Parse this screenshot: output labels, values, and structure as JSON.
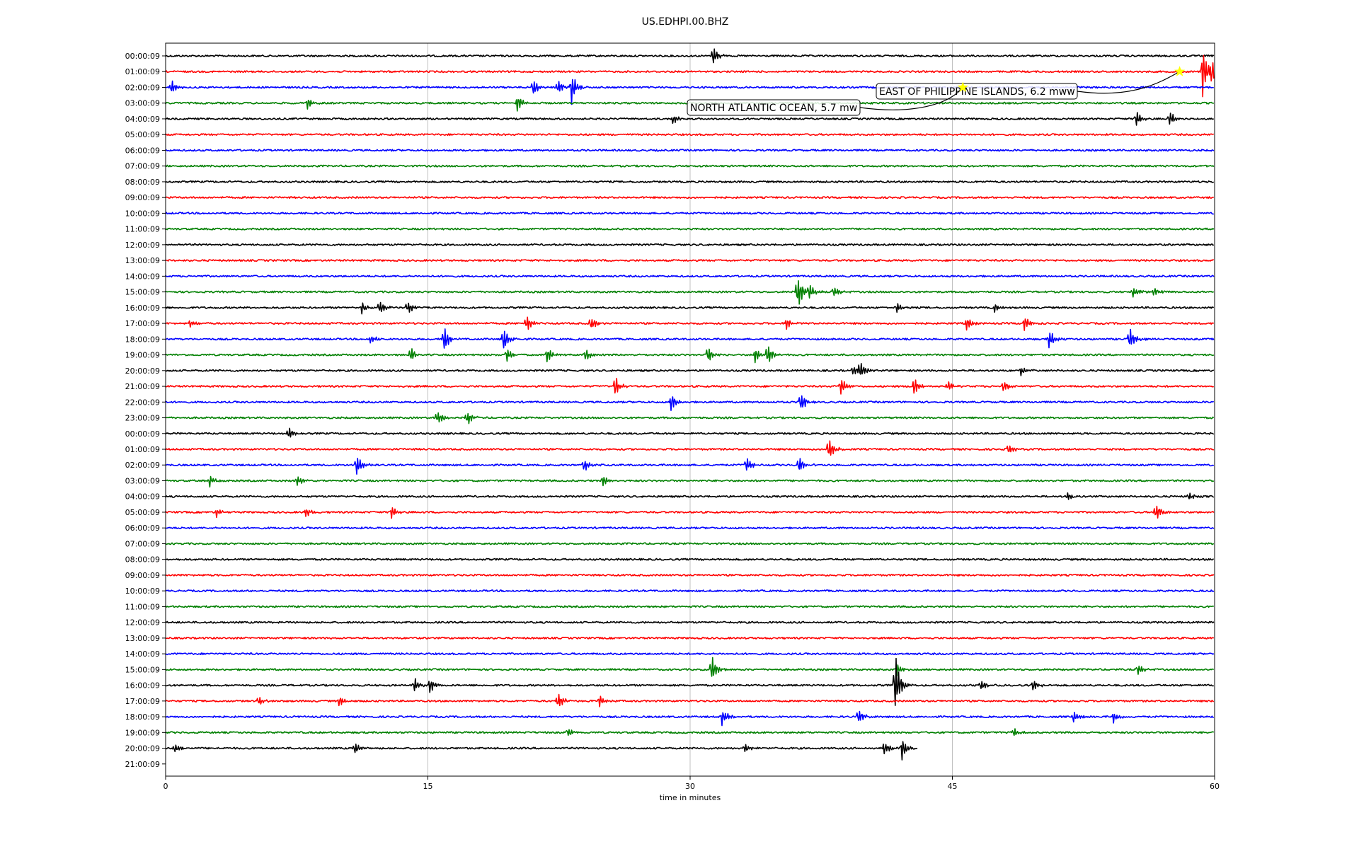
{
  "chart_data": {
    "type": "line",
    "title": "US.EDHPI.00.BHZ",
    "xlabel": "time in minutes",
    "xlim": [
      0,
      60
    ],
    "x_ticks": [
      0,
      15,
      30,
      45,
      60
    ],
    "grid": "vertical lines at x ticks",
    "trace_colors": [
      "#000000",
      "#ff0000",
      "#0000ff",
      "#008000"
    ],
    "row_labels": [
      "00:00:09",
      "01:00:09",
      "02:00:09",
      "03:00:09",
      "04:00:09",
      "05:00:09",
      "06:00:09",
      "07:00:09",
      "08:00:09",
      "09:00:09",
      "10:00:09",
      "11:00:09",
      "12:00:09",
      "13:00:09",
      "14:00:09",
      "15:00:09",
      "16:00:09",
      "17:00:09",
      "18:00:09",
      "19:00:09",
      "20:00:09",
      "21:00:09",
      "22:00:09",
      "23:00:09",
      "00:00:09",
      "01:00:09",
      "02:00:09",
      "03:00:09",
      "04:00:09",
      "05:00:09",
      "06:00:09",
      "07:00:09",
      "08:00:09",
      "09:00:09",
      "10:00:09",
      "11:00:09",
      "12:00:09",
      "13:00:09",
      "14:00:09",
      "15:00:09",
      "16:00:09",
      "17:00:09",
      "18:00:09",
      "19:00:09",
      "20:00:09",
      "21:00:09"
    ],
    "last_trace_end_minutes": 43,
    "events": [
      {
        "row": 0,
        "t": 31.3,
        "amp": 0.6
      },
      {
        "row": 1,
        "t": 59.3,
        "amp": 1.8
      },
      {
        "row": 1,
        "t": 59.8,
        "amp": 0.8
      },
      {
        "row": 2,
        "t": 0.3,
        "amp": 0.5
      },
      {
        "row": 2,
        "t": 21.0,
        "amp": 0.6
      },
      {
        "row": 2,
        "t": 22.4,
        "amp": 0.5
      },
      {
        "row": 2,
        "t": 23.2,
        "amp": 1.0
      },
      {
        "row": 3,
        "t": 8.1,
        "amp": 0.4
      },
      {
        "row": 3,
        "t": 20.1,
        "amp": 0.6
      },
      {
        "row": 4,
        "t": 29.0,
        "amp": 0.3
      },
      {
        "row": 4,
        "t": 55.5,
        "amp": 0.5
      },
      {
        "row": 4,
        "t": 57.4,
        "amp": 0.5
      },
      {
        "row": 15,
        "t": 36.1,
        "amp": 1.4
      },
      {
        "row": 15,
        "t": 36.8,
        "amp": 0.6
      },
      {
        "row": 15,
        "t": 38.2,
        "amp": 0.4
      },
      {
        "row": 15,
        "t": 55.3,
        "amp": 0.4
      },
      {
        "row": 15,
        "t": 56.5,
        "amp": 0.3
      },
      {
        "row": 16,
        "t": 11.2,
        "amp": 0.4
      },
      {
        "row": 16,
        "t": 12.2,
        "amp": 0.5
      },
      {
        "row": 16,
        "t": 13.8,
        "amp": 0.6
      },
      {
        "row": 16,
        "t": 41.8,
        "amp": 0.4
      },
      {
        "row": 16,
        "t": 47.4,
        "amp": 0.3
      },
      {
        "row": 17,
        "t": 1.4,
        "amp": 0.3
      },
      {
        "row": 17,
        "t": 20.6,
        "amp": 0.6
      },
      {
        "row": 17,
        "t": 24.3,
        "amp": 0.5
      },
      {
        "row": 17,
        "t": 35.5,
        "amp": 0.4
      },
      {
        "row": 17,
        "t": 45.8,
        "amp": 0.5
      },
      {
        "row": 17,
        "t": 49.1,
        "amp": 0.5
      },
      {
        "row": 18,
        "t": 11.7,
        "amp": 0.3
      },
      {
        "row": 18,
        "t": 15.9,
        "amp": 0.9
      },
      {
        "row": 18,
        "t": 19.3,
        "amp": 0.9
      },
      {
        "row": 18,
        "t": 50.5,
        "amp": 0.7
      },
      {
        "row": 18,
        "t": 55.1,
        "amp": 0.9
      },
      {
        "row": 19,
        "t": 14.0,
        "amp": 0.5
      },
      {
        "row": 19,
        "t": 19.5,
        "amp": 0.5
      },
      {
        "row": 19,
        "t": 21.8,
        "amp": 0.5
      },
      {
        "row": 19,
        "t": 24.0,
        "amp": 0.4
      },
      {
        "row": 19,
        "t": 31.0,
        "amp": 0.6
      },
      {
        "row": 19,
        "t": 33.7,
        "amp": 0.5
      },
      {
        "row": 19,
        "t": 34.4,
        "amp": 0.8
      },
      {
        "row": 20,
        "t": 39.3,
        "amp": 0.4
      },
      {
        "row": 20,
        "t": 39.7,
        "amp": 0.5
      },
      {
        "row": 20,
        "t": 48.9,
        "amp": 0.3
      },
      {
        "row": 21,
        "t": 25.7,
        "amp": 0.7
      },
      {
        "row": 21,
        "t": 38.6,
        "amp": 0.7
      },
      {
        "row": 21,
        "t": 42.8,
        "amp": 0.7
      },
      {
        "row": 21,
        "t": 44.7,
        "amp": 0.4
      },
      {
        "row": 21,
        "t": 47.9,
        "amp": 0.4
      },
      {
        "row": 22,
        "t": 28.9,
        "amp": 0.6
      },
      {
        "row": 22,
        "t": 36.3,
        "amp": 0.7
      },
      {
        "row": 23,
        "t": 15.5,
        "amp": 0.6
      },
      {
        "row": 23,
        "t": 17.2,
        "amp": 0.6
      },
      {
        "row": 24,
        "t": 7.0,
        "amp": 0.4
      },
      {
        "row": 25,
        "t": 37.9,
        "amp": 0.8
      },
      {
        "row": 25,
        "t": 48.2,
        "amp": 0.4
      },
      {
        "row": 26,
        "t": 10.9,
        "amp": 0.7
      },
      {
        "row": 26,
        "t": 23.9,
        "amp": 0.5
      },
      {
        "row": 26,
        "t": 33.2,
        "amp": 0.5
      },
      {
        "row": 26,
        "t": 36.2,
        "amp": 0.6
      },
      {
        "row": 27,
        "t": 2.5,
        "amp": 0.4
      },
      {
        "row": 27,
        "t": 7.5,
        "amp": 0.4
      },
      {
        "row": 27,
        "t": 25.0,
        "amp": 0.4
      },
      {
        "row": 28,
        "t": 51.5,
        "amp": 0.3
      },
      {
        "row": 28,
        "t": 58.5,
        "amp": 0.3
      },
      {
        "row": 29,
        "t": 2.9,
        "amp": 0.3
      },
      {
        "row": 29,
        "t": 8.0,
        "amp": 0.3
      },
      {
        "row": 29,
        "t": 12.9,
        "amp": 0.4
      },
      {
        "row": 29,
        "t": 56.6,
        "amp": 0.7
      },
      {
        "row": 39,
        "t": 31.2,
        "amp": 0.9
      },
      {
        "row": 39,
        "t": 41.8,
        "amp": 0.4
      },
      {
        "row": 39,
        "t": 55.6,
        "amp": 0.4
      },
      {
        "row": 40,
        "t": 14.2,
        "amp": 0.5
      },
      {
        "row": 40,
        "t": 15.1,
        "amp": 0.5
      },
      {
        "row": 40,
        "t": 46.6,
        "amp": 0.4
      },
      {
        "row": 40,
        "t": 49.6,
        "amp": 0.5
      },
      {
        "row": 40,
        "t": 41.7,
        "amp": 2.2
      },
      {
        "row": 41,
        "t": 5.3,
        "amp": 0.3
      },
      {
        "row": 41,
        "t": 9.9,
        "amp": 0.4
      },
      {
        "row": 41,
        "t": 22.4,
        "amp": 0.6
      },
      {
        "row": 41,
        "t": 24.8,
        "amp": 0.4
      },
      {
        "row": 42,
        "t": 31.8,
        "amp": 0.6
      },
      {
        "row": 42,
        "t": 39.6,
        "amp": 0.5
      },
      {
        "row": 42,
        "t": 51.9,
        "amp": 0.4
      },
      {
        "row": 42,
        "t": 54.2,
        "amp": 0.4
      },
      {
        "row": 43,
        "t": 23.0,
        "amp": 0.3
      },
      {
        "row": 43,
        "t": 48.5,
        "amp": 0.3
      },
      {
        "row": 44,
        "t": 0.5,
        "amp": 0.3
      },
      {
        "row": 44,
        "t": 10.8,
        "amp": 0.4
      },
      {
        "row": 44,
        "t": 33.1,
        "amp": 0.3
      },
      {
        "row": 44,
        "t": 41.1,
        "amp": 0.5
      },
      {
        "row": 44,
        "t": 42.1,
        "amp": 0.8
      }
    ],
    "annotations": [
      {
        "text": "EAST OF PHILIPPINE ISLANDS, 6.2 mww",
        "event_row": 1,
        "event_t": 58.0,
        "marker": "star",
        "marker_color": "#ffff00"
      },
      {
        "text": "NORTH ATLANTIC OCEAN, 5.7 mw",
        "event_row": 2,
        "event_t": 45.6,
        "marker": "star",
        "marker_color": "#ffff00"
      }
    ]
  }
}
